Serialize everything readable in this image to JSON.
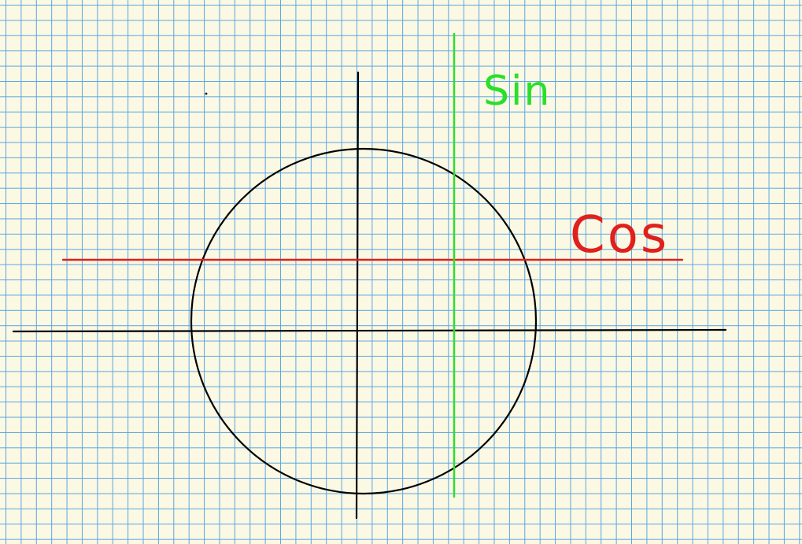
{
  "labels": {
    "sin": "Sin",
    "cos": "Cos"
  },
  "colors": {
    "paper": "#fbf8e4",
    "grid": "#5aa6e0",
    "ink": "#000000",
    "sin_line": "#2adf2a",
    "cos_line": "#e0201c"
  }
}
